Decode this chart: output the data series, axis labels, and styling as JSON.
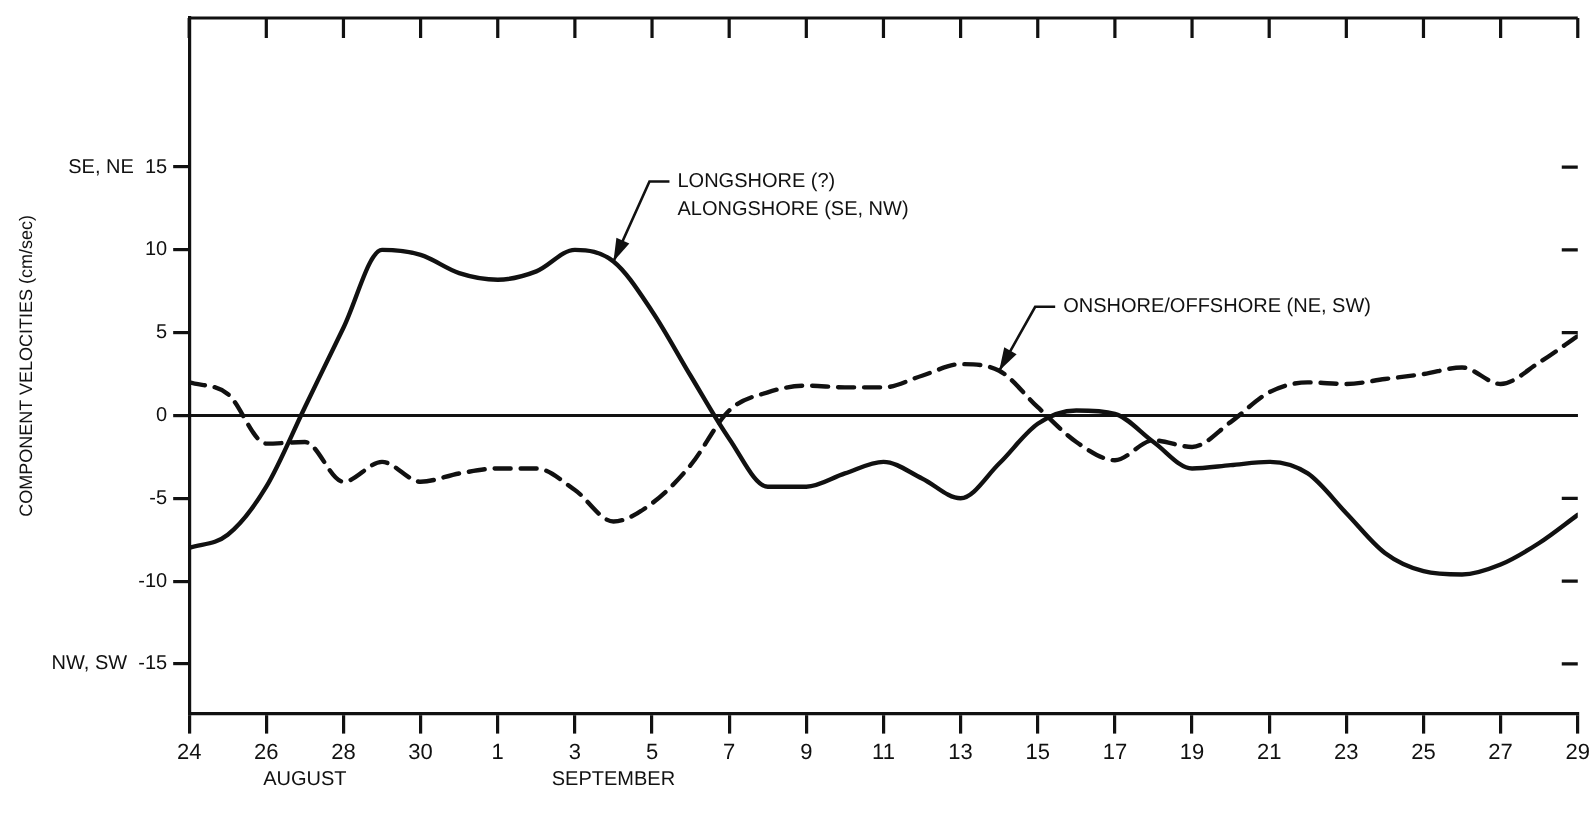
{
  "chart_data": {
    "type": "line",
    "ylabel": "COMPONENT VELOCITIES (cm/sec)",
    "x": [
      "--08-24",
      "--08-25",
      "--08-26",
      "--08-27",
      "--08-28",
      "--08-29",
      "--08-30",
      "--08-31",
      "--09-01",
      "--09-02",
      "--09-03",
      "--09-04",
      "--09-05",
      "--09-06",
      "--09-07",
      "--09-08",
      "--09-09",
      "--09-10",
      "--09-11",
      "--09-12",
      "--09-13",
      "--09-14",
      "--09-15",
      "--09-16",
      "--09-17",
      "--09-18",
      "--09-19",
      "--09-20",
      "--09-21",
      "--09-22",
      "--09-23",
      "--09-24",
      "--09-25",
      "--09-26",
      "--09-27",
      "--09-28",
      "--09-29"
    ],
    "xlim": [
      "--08-24",
      "--09-29"
    ],
    "xticks": [
      {
        "value": "--08-24",
        "label": "24"
      },
      {
        "value": "--08-26",
        "label": "26"
      },
      {
        "value": "--08-28",
        "label": "28"
      },
      {
        "value": "--08-30",
        "label": "30"
      },
      {
        "value": "--09-01",
        "label": "1"
      },
      {
        "value": "--09-03",
        "label": "3"
      },
      {
        "value": "--09-05",
        "label": "5"
      },
      {
        "value": "--09-07",
        "label": "7"
      },
      {
        "value": "--09-09",
        "label": "9"
      },
      {
        "value": "--09-11",
        "label": "11"
      },
      {
        "value": "--09-13",
        "label": "13"
      },
      {
        "value": "--09-15",
        "label": "15"
      },
      {
        "value": "--09-17",
        "label": "17"
      },
      {
        "value": "--09-19",
        "label": "19"
      },
      {
        "value": "--09-21",
        "label": "21"
      },
      {
        "value": "--09-23",
        "label": "23"
      },
      {
        "value": "--09-25",
        "label": "25"
      },
      {
        "value": "--09-27",
        "label": "27"
      },
      {
        "value": "--09-29",
        "label": "29"
      }
    ],
    "ylim": [
      -18,
      24
    ],
    "yticks": [
      {
        "value": -15,
        "label": "NW, SW  -15"
      },
      -10,
      -5,
      0,
      5,
      10,
      {
        "value": 15,
        "label": "SE, NE  15"
      }
    ],
    "series": [
      {
        "color": "#111111",
        "line_style": "solid",
        "values": [
          -8,
          -7.2,
          -4.3,
          0.5,
          5.3,
          10,
          9.7,
          8.6,
          8.2,
          8.7,
          10,
          9.3,
          6.3,
          2.4,
          -1.4,
          -4.3,
          -4.3,
          -3.5,
          -2.8,
          -3.8,
          -5,
          -2.9,
          -0.5,
          0.3,
          0.1,
          -1.6,
          -3.2,
          -3,
          -2.8,
          -3.5,
          -5.9,
          -8.3,
          -9.4,
          -9.6,
          -9,
          -7.7,
          -6
        ]
      },
      {
        "color": "#111111",
        "line_style": "dashed",
        "values": [
          2,
          1.3,
          -1.7,
          -1.6,
          -4,
          -2.8,
          -4,
          -3.5,
          -3.2,
          -3.2,
          -4.5,
          -6.4,
          -5.3,
          -3,
          0.3,
          1.4,
          1.8,
          1.7,
          1.7,
          2.4,
          3.1,
          2.7,
          0.5,
          -1.6,
          -2.7,
          -1.5,
          -1.9,
          -0.4,
          1.4,
          2,
          1.9,
          2.2,
          2.5,
          2.9,
          1.9,
          3.2,
          4.8
        ]
      }
    ],
    "ref_lines": [
      {
        "axis": "y",
        "value": 0,
        "color": "#111111"
      }
    ],
    "annotations": [
      {
        "text": "LONGSHORE (?)\nALONGSHORE (SE, NW)",
        "x": "--09-04",
        "y": 9.3
      },
      {
        "text": "ONSHORE/OFFSHORE (NE, SW)",
        "x": "--09-14",
        "y": 2.7
      },
      "AUGUST",
      "SEPTEMBER"
    ],
    "grid": false,
    "legend": false,
    "marker": "none"
  }
}
